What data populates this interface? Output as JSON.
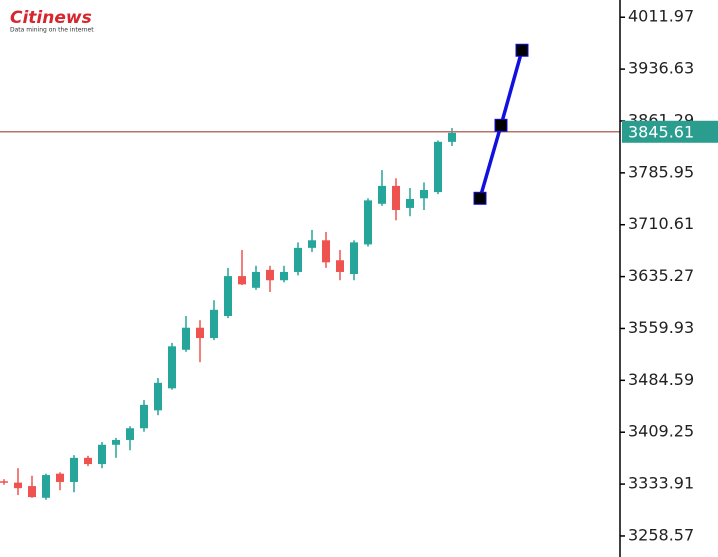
{
  "logo": {
    "name": "Citinews",
    "tagline": "Data mining on the internet"
  },
  "chart_data": {
    "type": "candlestick",
    "categories": [
      null,
      null,
      null,
      null,
      null,
      null,
      null,
      null,
      null,
      null,
      null,
      null,
      null,
      null,
      null,
      null,
      null,
      null,
      null,
      null,
      null,
      null,
      null,
      null,
      null,
      null,
      null,
      null,
      null,
      null,
      null,
      null,
      null
    ],
    "open": [
      3338,
      3336,
      3331,
      3314,
      3349,
      3337,
      3372,
      3363,
      3391,
      3398,
      3415,
      3441,
      3473,
      3529,
      3561,
      3546,
      3578,
      3636,
      3619,
      3645,
      3630,
      3642,
      3677,
      3688,
      3659,
      3639,
      3682,
      3741,
      3767,
      3735,
      3749,
      3758,
      3831
    ],
    "high": [
      3341,
      3357,
      3346,
      3349,
      3351,
      3376,
      3375,
      3395,
      3401,
      3418,
      3456,
      3488,
      3539,
      3578,
      3572,
      3601,
      3648,
      3674,
      3651,
      3651,
      3651,
      3685,
      3703,
      3700,
      3674,
      3688,
      3749,
      3790,
      3778,
      3764,
      3772,
      3833,
      3851
    ],
    "low": [
      3333,
      3318,
      3314,
      3311,
      3325,
      3322,
      3360,
      3357,
      3372,
      3383,
      3410,
      3434,
      3471,
      3526,
      3511,
      3543,
      3575,
      3623,
      3616,
      3613,
      3627,
      3637,
      3671,
      3648,
      3630,
      3630,
      3679,
      3738,
      3717,
      3723,
      3732,
      3755,
      3825
    ],
    "close": [
      3336,
      3328,
      3315,
      3347,
      3337,
      3372,
      3363,
      3391,
      3398,
      3415,
      3449,
      3481,
      3534,
      3561,
      3546,
      3587,
      3636,
      3624,
      3642,
      3630,
      3642,
      3677,
      3688,
      3656,
      3642,
      3685,
      3746,
      3767,
      3732,
      3748,
      3761,
      3831,
      3844
    ],
    "up_color": "#26a69a",
    "down_color": "#ef5350",
    "overlay": {
      "color": "#1010e0",
      "marker_color": "#000000",
      "x": [
        34,
        35.5,
        37
      ],
      "values": [
        3749,
        3855,
        3964
      ]
    },
    "last_price": {
      "value": 3845.61,
      "line_color": "#b5736a",
      "label_color": "#2a9d8f"
    },
    "ylim": [
      3228,
      4037
    ],
    "yticks": [
      4011.97,
      3936.63,
      3861.29,
      3785.95,
      3710.61,
      3635.27,
      3559.93,
      3484.59,
      3409.25,
      3333.91,
      3258.57
    ]
  }
}
